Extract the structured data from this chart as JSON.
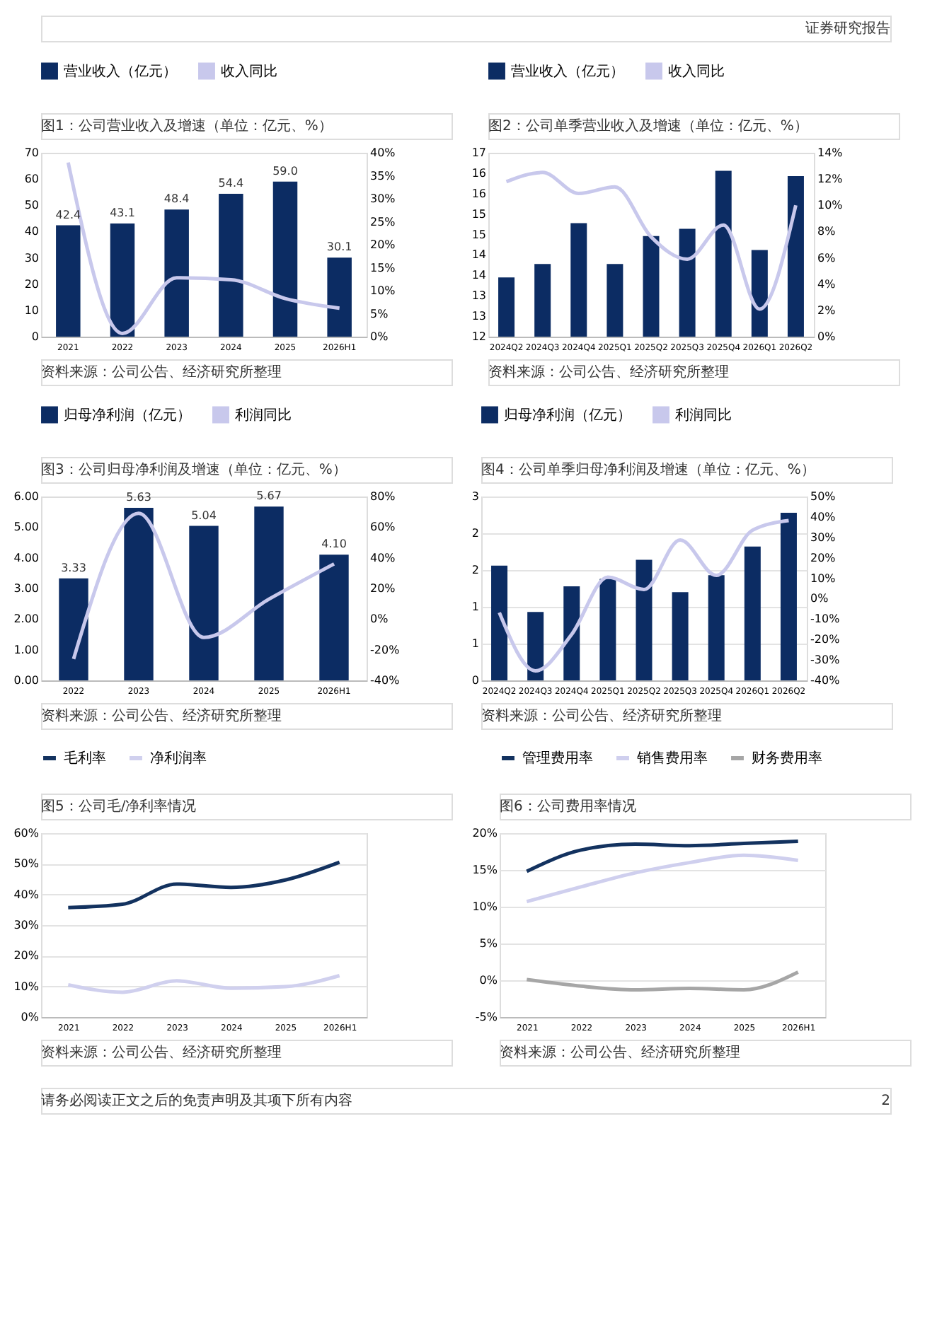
{
  "chart_data": [
    {
      "type": "bar",
      "title": "图1：公司营业收入及增速（单位：亿元、%）",
      "categories": [
        "2021",
        "2022",
        "2023",
        "2024",
        "2025",
        "2026H1"
      ],
      "series": [
        {
          "name": "营业收入（亿元）",
          "type": "bar",
          "color": "#0c2c63",
          "values": [
            42.4,
            43.1,
            48.4,
            54.4,
            59.0,
            30.1
          ],
          "value_labels": [
            "42.4",
            "43.1",
            "48.4",
            "54.4",
            "59.0",
            "30.1"
          ]
        },
        {
          "name": "收入同比",
          "type": "line",
          "axis": "y2",
          "color": "#c8c8ec",
          "values": [
            37.9,
            0.7,
            12.8,
            12.4,
            8.3,
            6.2
          ]
        }
      ],
      "ylim": [
        0,
        70
      ],
      "yticks": [
        0,
        10,
        20,
        30,
        40,
        50,
        60,
        70
      ],
      "y2lim": [
        0,
        40
      ],
      "y2ticks": [
        {
          "value": 0,
          "label": "0%"
        },
        {
          "value": 5,
          "label": "5%"
        },
        {
          "value": 10,
          "label": "10%"
        },
        {
          "value": 15,
          "label": "15%"
        },
        {
          "value": 20,
          "label": "20%"
        },
        {
          "value": 25,
          "label": "25%"
        },
        {
          "value": 30,
          "label": "30%"
        },
        {
          "value": 35,
          "label": "35%"
        },
        {
          "value": 40,
          "label": "40%"
        }
      ],
      "legend": "top",
      "annotations": [
        "资料来源：公司公告、经济研究所整理",
        "证券研究报告"
      ]
    },
    {
      "type": "bar",
      "title": "图2：公司单季营业收入及增速（单位：亿元、%）",
      "categories": [
        "2024Q2",
        "2024Q3",
        "2024Q4",
        "2025Q1",
        "2025Q2",
        "2025Q3",
        "2025Q4",
        "2026Q1",
        "2026Q2"
      ],
      "series": [
        {
          "name": "营业收入（亿元）",
          "type": "bar",
          "color": "#0c2c63",
          "values": [
            13.45,
            13.78,
            14.78,
            13.78,
            14.46,
            14.64,
            16.06,
            14.12,
            15.93
          ]
        },
        {
          "name": "收入同比",
          "type": "line",
          "axis": "y2",
          "color": "#c8c8ec",
          "values": [
            11.8,
            12.5,
            10.9,
            11.4,
            7.6,
            5.9,
            8.5,
            2.1,
            10.0
          ]
        }
      ],
      "ylim": [
        12,
        16.5
      ],
      "yticks": [
        12,
        {
          "value": 12.5,
          "label": "13"
        },
        13,
        {
          "value": 13.5,
          "label": "14"
        },
        14,
        {
          "value": 14.5,
          "label": "15"
        },
        15,
        {
          "value": 15.5,
          "label": "16"
        },
        16,
        {
          "value": 16.5,
          "label": "17"
        }
      ],
      "y2lim": [
        0,
        14
      ],
      "y2ticks": [
        {
          "value": 0,
          "label": "0%"
        },
        {
          "value": 2,
          "label": "2%"
        },
        {
          "value": 4,
          "label": "4%"
        },
        {
          "value": 6,
          "label": "6%"
        },
        {
          "value": 8,
          "label": "8%"
        },
        {
          "value": 10,
          "label": "10%"
        },
        {
          "value": 12,
          "label": "12%"
        },
        {
          "value": 14,
          "label": "14%"
        }
      ],
      "legend": "top",
      "annotations": [
        "资料来源：公司公告、经济研究所整理"
      ]
    },
    {
      "type": "bar",
      "title": "图3：公司归母净利润及增速（单位：亿元、%）",
      "categories": [
        "2022",
        "2023",
        "2024",
        "2025",
        "2026H1"
      ],
      "series": [
        {
          "name": "归母净利润（亿元）",
          "type": "bar",
          "color": "#0c2c63",
          "values": [
            3.33,
            5.63,
            5.04,
            5.67,
            4.1
          ],
          "value_labels": [
            "3.33",
            "5.63",
            "5.04",
            "5.67",
            "4.10"
          ]
        },
        {
          "name": "利润同比",
          "type": "line",
          "axis": "y2",
          "color": "#c8c8ec",
          "values": [
            -26,
            69,
            -12,
            13,
            36
          ]
        }
      ],
      "ylim": [
        0,
        6
      ],
      "yticks": [
        {
          "value": 0,
          "label": "0.00"
        },
        {
          "value": 1,
          "label": "1.00"
        },
        {
          "value": 2,
          "label": "2.00"
        },
        {
          "value": 3,
          "label": "3.00"
        },
        {
          "value": 4,
          "label": "4.00"
        },
        {
          "value": 5,
          "label": "5.00"
        },
        {
          "value": 6,
          "label": "6.00"
        }
      ],
      "y2lim": [
        -40,
        80
      ],
      "y2ticks": [
        {
          "value": -40,
          "label": "-40%"
        },
        {
          "value": -20,
          "label": "-20%"
        },
        {
          "value": 0,
          "label": "0%"
        },
        {
          "value": 20,
          "label": "20%"
        },
        {
          "value": 40,
          "label": "40%"
        },
        {
          "value": 60,
          "label": "60%"
        },
        {
          "value": 80,
          "label": "80%"
        }
      ],
      "legend": "top",
      "annotations": [
        "资料来源：公司公告、经济研究所整理"
      ]
    },
    {
      "type": "bar",
      "title": "图4：公司单季归母净利润及增速（单位：亿元、%）",
      "categories": [
        "2024Q2",
        "2024Q3",
        "2024Q4",
        "2025Q1",
        "2025Q2",
        "2025Q3",
        "2025Q4",
        "2026Q1",
        "2026Q2"
      ],
      "series": [
        {
          "name": "归母净利润（亿元）",
          "type": "bar",
          "color": "#0c2c63",
          "values": [
            1.56,
            0.93,
            1.28,
            1.38,
            1.64,
            1.2,
            1.43,
            1.82,
            2.28
          ]
        },
        {
          "name": "利润同比",
          "type": "line",
          "axis": "y2",
          "color": "#c8c8ec",
          "values": [
            -6.8,
            -35.3,
            -17.5,
            10.5,
            4.5,
            28.7,
            11.4,
            33.5,
            38.2
          ]
        }
      ],
      "ylim": [
        0,
        2.5
      ],
      "yticks": [
        0,
        {
          "value": 0.5,
          "label": "1"
        },
        1,
        {
          "value": 1.5,
          "label": "2"
        },
        2,
        {
          "value": 2.5,
          "label": "3"
        }
      ],
      "y2lim": [
        -40,
        50
      ],
      "y2ticks": [
        {
          "value": -40,
          "label": "-40%"
        },
        {
          "value": -30,
          "label": "-30%"
        },
        {
          "value": -20,
          "label": "-20%"
        },
        {
          "value": -10,
          "label": "-10%"
        },
        {
          "value": 0,
          "label": "0%"
        },
        {
          "value": 10,
          "label": "10%"
        },
        {
          "value": 20,
          "label": "20%"
        },
        {
          "value": 30,
          "label": "30%"
        },
        {
          "value": 40,
          "label": "40%"
        },
        {
          "value": 50,
          "label": "50%"
        }
      ],
      "grid": "y",
      "legend": "top",
      "annotations": [
        "资料来源：公司公告、经济研究所整理"
      ]
    },
    {
      "type": "line",
      "title": "图5：公司毛/净利率情况",
      "categories": [
        "2021",
        "2022",
        "2023",
        "2024",
        "2025",
        "2026H1"
      ],
      "series": [
        {
          "name": "毛利率",
          "color": "#13325f",
          "values": [
            35.7,
            36.8,
            43.4,
            42.3,
            44.7,
            50.5
          ]
        },
        {
          "name": "净利润率",
          "color": "#d0d0ee",
          "values": [
            10.5,
            8.1,
            11.8,
            9.4,
            9.9,
            13.5
          ]
        }
      ],
      "ylim": [
        0,
        60
      ],
      "yticks": [
        {
          "value": 0,
          "label": "0%"
        },
        {
          "value": 10,
          "label": "10%"
        },
        {
          "value": 20,
          "label": "20%"
        },
        {
          "value": 30,
          "label": "30%"
        },
        {
          "value": 40,
          "label": "40%"
        },
        {
          "value": 50,
          "label": "50%"
        },
        {
          "value": 60,
          "label": "60%"
        }
      ],
      "grid": "y",
      "legend": "top",
      "annotations": [
        "资料来源：公司公告、经济研究所整理"
      ]
    },
    {
      "type": "line",
      "title": "图6：公司费用率情况",
      "categories": [
        "2021",
        "2022",
        "2023",
        "2024",
        "2025",
        "2026H1"
      ],
      "series": [
        {
          "name": "管理费用率",
          "color": "#13325f",
          "values": [
            14.8,
            17.7,
            18.5,
            18.3,
            18.6,
            18.9
          ]
        },
        {
          "name": "销售费用率",
          "color": "#cfcfee",
          "values": [
            10.7,
            12.7,
            14.6,
            16.0,
            17.0,
            16.3
          ]
        },
        {
          "name": "财务费用率",
          "color": "#a6a6a6",
          "values": [
            0.1,
            -0.8,
            -1.3,
            -1.1,
            -1.3,
            1.1
          ]
        }
      ],
      "ylim": [
        -5,
        20
      ],
      "yticks": [
        {
          "value": -5,
          "label": "-5%"
        },
        {
          "value": 0,
          "label": "0%"
        },
        {
          "value": 5,
          "label": "5%"
        },
        {
          "value": 10,
          "label": "10%"
        },
        {
          "value": 15,
          "label": "15%"
        },
        {
          "value": 20,
          "label": "20%"
        }
      ],
      "grid": "y",
      "legend": "top",
      "annotations": [
        "资料来源：公司公告、经济研究所整理",
        "请务必阅读正文之后的免责声明及其项下所有内容",
        "2"
      ]
    }
  ]
}
